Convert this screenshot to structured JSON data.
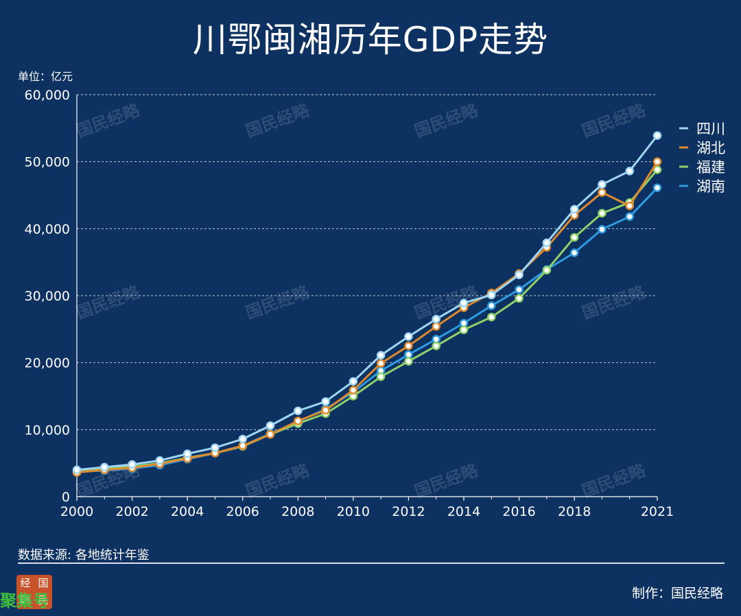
{
  "header": {
    "title": "川鄂闽湘历年GDP走势",
    "unit": "单位：亿元"
  },
  "footer": {
    "source": "数据来源: 各地统计年鉴",
    "maker": "制作：国民经略",
    "logo_chars": [
      "经",
      "国",
      "略",
      "民"
    ],
    "corner_text": "聚集号"
  },
  "watermark_text": "国民经略",
  "colors": {
    "background": "#0d3262",
    "sichuan": "#9fd6f2",
    "hubei": "#e0892c",
    "fujian": "#8fd16a",
    "hunan": "#2f9be0",
    "grid": "#ffffff"
  },
  "chart_data": {
    "type": "line",
    "title": "川鄂闽湘历年GDP走势",
    "xlabel": "",
    "ylabel": "单位：亿元",
    "xlim": [
      2000,
      2021
    ],
    "ylim": [
      0,
      60000
    ],
    "x_ticks": [
      2000,
      2002,
      2004,
      2006,
      2008,
      2010,
      2012,
      2014,
      2016,
      2018,
      2021
    ],
    "x_tick_labels": [
      "2000",
      "2002",
      "2004",
      "2006",
      "2008",
      "2010",
      "2012",
      "2014",
      "2016",
      "2018",
      "2021"
    ],
    "y_ticks": [
      0,
      10000,
      20000,
      30000,
      40000,
      50000,
      60000
    ],
    "y_tick_labels": [
      "0",
      "10,000",
      "20,000",
      "30,000",
      "40,000",
      "50,000",
      "60,000"
    ],
    "grid": true,
    "legend_position": "top-right",
    "x": [
      2000,
      2001,
      2002,
      2003,
      2004,
      2005,
      2006,
      2007,
      2008,
      2009,
      2010,
      2011,
      2012,
      2013,
      2014,
      2015,
      2016,
      2017,
      2018,
      2019,
      2020,
      2021
    ],
    "series": [
      {
        "name": "四川",
        "color": "#9fd6f2",
        "values": [
          4000,
          4400,
          4800,
          5400,
          6400,
          7300,
          8600,
          10600,
          12800,
          14200,
          17200,
          21100,
          23900,
          26500,
          28900,
          30100,
          33100,
          37900,
          42900,
          46600,
          48600,
          53900
        ]
      },
      {
        "name": "湖北",
        "color": "#e0892c",
        "values": [
          3600,
          4000,
          4300,
          4900,
          5700,
          6500,
          7600,
          9300,
          11300,
          12900,
          15900,
          19900,
          22500,
          25400,
          28200,
          30400,
          33300,
          37200,
          42000,
          45400,
          43400,
          50000
        ]
      },
      {
        "name": "福建",
        "color": "#8fd16a",
        "values": [
          3700,
          4100,
          4500,
          5000,
          5800,
          6500,
          7500,
          9300,
          10900,
          12400,
          15000,
          17900,
          20200,
          22500,
          24900,
          26800,
          29600,
          33800,
          38700,
          42300,
          43900,
          48800
        ]
      },
      {
        "name": "湖南",
        "color": "#2f9be0",
        "values": [
          3700,
          3900,
          4200,
          4700,
          5600,
          6500,
          7600,
          9400,
          11200,
          13100,
          15600,
          18800,
          21200,
          23500,
          25900,
          28500,
          30900,
          33900,
          36400,
          39900,
          41800,
          46100
        ]
      }
    ]
  }
}
